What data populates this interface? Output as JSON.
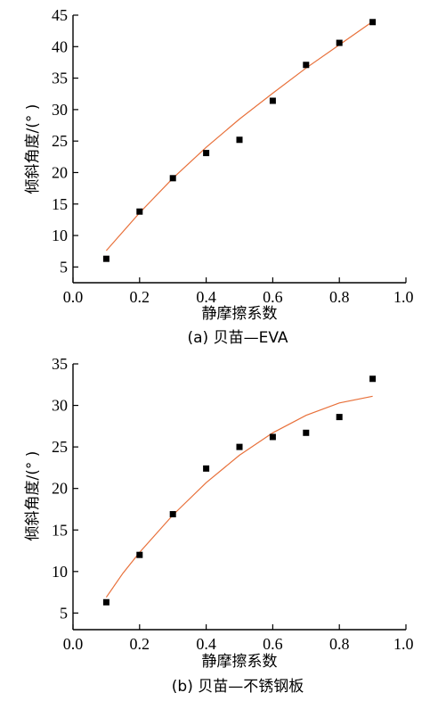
{
  "chart_data": [
    {
      "type": "scatter",
      "caption": "(a) 贝苗—EVA",
      "xlabel": "静摩擦系数",
      "ylabel": "倾斜角度/(° )",
      "xlim": [
        0.0,
        1.0
      ],
      "ylim": [
        2.5,
        45
      ],
      "xticks": [
        "0.0",
        "0.2",
        "0.4",
        "0.6",
        "0.8",
        "1.0"
      ],
      "yticks": [
        "5",
        "10",
        "15",
        "20",
        "25",
        "30",
        "35",
        "40",
        "45"
      ],
      "points": {
        "x": [
          0.1,
          0.2,
          0.3,
          0.4,
          0.5,
          0.6,
          0.7,
          0.8,
          0.9
        ],
        "y": [
          6.3,
          13.8,
          19.1,
          23.1,
          25.2,
          31.4,
          37.1,
          40.6,
          43.9
        ]
      },
      "fit": {
        "x": [
          0.1,
          0.2,
          0.3,
          0.4,
          0.5,
          0.6,
          0.7,
          0.8,
          0.9
        ],
        "y": [
          7.6,
          13.6,
          19.1,
          24.0,
          28.5,
          32.6,
          36.6,
          40.3,
          44.0
        ]
      },
      "marker_color": "#000000",
      "fit_color": "#e8703a"
    },
    {
      "type": "scatter",
      "caption": "(b) 贝苗—不锈钢板",
      "xlabel": "静摩擦系数",
      "ylabel": "倾斜角度/(° )",
      "xlim": [
        0.0,
        1.0
      ],
      "ylim": [
        3,
        35
      ],
      "xticks": [
        "0.0",
        "0.2",
        "0.4",
        "0.6",
        "0.8",
        "1.0"
      ],
      "yticks": [
        "5",
        "10",
        "15",
        "20",
        "25",
        "30",
        "35"
      ],
      "points": {
        "x": [
          0.1,
          0.2,
          0.3,
          0.4,
          0.5,
          0.6,
          0.7,
          0.8,
          0.9
        ],
        "y": [
          6.3,
          12.0,
          16.9,
          22.4,
          25.0,
          26.2,
          26.7,
          28.6,
          33.2
        ]
      },
      "fit": {
        "x": [
          0.1,
          0.15,
          0.2,
          0.3,
          0.4,
          0.5,
          0.6,
          0.7,
          0.8,
          0.9
        ],
        "y": [
          6.9,
          9.8,
          12.3,
          16.8,
          20.7,
          24.0,
          26.7,
          28.8,
          30.3,
          31.1
        ]
      },
      "marker_color": "#000000",
      "fit_color": "#e8703a"
    }
  ]
}
